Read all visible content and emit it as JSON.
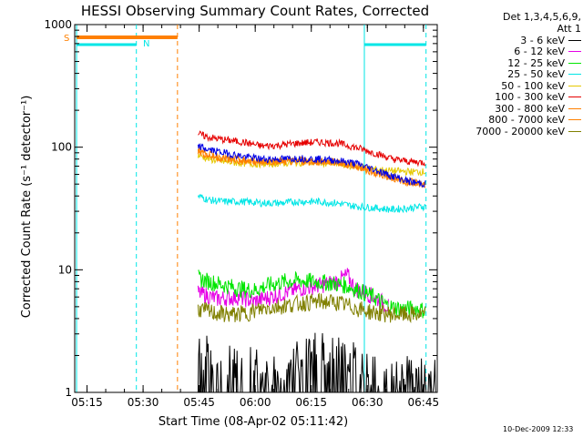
{
  "chart_data": {
    "type": "line",
    "title": "HESSI Observing Summary Count Rates, Corrected",
    "xlabel": "Start Time (08-Apr-02 05:11:42)",
    "ylabel": "Corrected Count Rate (s⁻¹ detector⁻¹)",
    "yscale": "log",
    "ylim": [
      1,
      1000
    ],
    "xlim_minutes": [
      0,
      97
    ],
    "x_ticks": [
      {
        "label": "05:15",
        "minute": 3.3
      },
      {
        "label": "05:30",
        "minute": 18.3
      },
      {
        "label": "05:45",
        "minute": 33.3
      },
      {
        "label": "06:00",
        "minute": 48.3
      },
      {
        "label": "06:15",
        "minute": 63.3
      },
      {
        "label": "06:30",
        "minute": 78.3
      },
      {
        "label": "06:45",
        "minute": 93.3
      }
    ],
    "y_ticks": [
      {
        "label": "1",
        "value": 1
      },
      {
        "label": "10",
        "value": 10
      },
      {
        "label": "100",
        "value": 100
      },
      {
        "label": "1000",
        "value": 1000
      }
    ],
    "grid": false,
    "legend_position": "top-right",
    "legend_header": [
      "Det 1,3,4,5,6,9,",
      "Att 1"
    ],
    "series": [
      {
        "name": "3 - 6 keV",
        "color": "#000000",
        "points": [
          [
            33,
            1.5
          ],
          [
            40,
            1.4
          ],
          [
            55,
            1.0
          ],
          [
            62,
            1.6
          ],
          [
            70,
            1.5
          ],
          [
            77,
            1.3
          ],
          [
            80,
            1.0
          ],
          [
            97,
            1.0
          ]
        ]
      },
      {
        "name": "6 - 12 keV",
        "color": "#e600e6",
        "points": [
          [
            33,
            6.5
          ],
          [
            38,
            5.8
          ],
          [
            44,
            6.0
          ],
          [
            48,
            5.5
          ],
          [
            54,
            6.2
          ],
          [
            60,
            7.0
          ],
          [
            66,
            7.5
          ],
          [
            70,
            8.0
          ],
          [
            73,
            9.0
          ],
          [
            75,
            7.0
          ],
          [
            78,
            6.5
          ],
          [
            80,
            6.0
          ],
          [
            82,
            5.5
          ],
          [
            84,
            5.0
          ]
        ]
      },
      {
        "name": "12 - 25 keV",
        "color": "#00e600",
        "points": [
          [
            33,
            8.5
          ],
          [
            36,
            8.0
          ],
          [
            40,
            7.5
          ],
          [
            44,
            7.0
          ],
          [
            48,
            6.8
          ],
          [
            52,
            7.5
          ],
          [
            56,
            8.0
          ],
          [
            60,
            8.2
          ],
          [
            64,
            8.0
          ],
          [
            68,
            7.8
          ],
          [
            72,
            7.5
          ],
          [
            76,
            6.8
          ],
          [
            80,
            6.0
          ],
          [
            84,
            5.0
          ],
          [
            88,
            4.8
          ],
          [
            92,
            4.8
          ],
          [
            94,
            4.6
          ]
        ]
      },
      {
        "name": "25 - 50 keV",
        "color": "#00e6e6",
        "points": [
          [
            33,
            40
          ],
          [
            36,
            37
          ],
          [
            40,
            36
          ],
          [
            45,
            36
          ],
          [
            50,
            35
          ],
          [
            55,
            35
          ],
          [
            60,
            36
          ],
          [
            65,
            36
          ],
          [
            70,
            35
          ],
          [
            75,
            33
          ],
          [
            80,
            32
          ],
          [
            85,
            31
          ],
          [
            90,
            32
          ],
          [
            94,
            33
          ]
        ]
      },
      {
        "name": "50 - 100 keV",
        "color": "#e6c800",
        "points": [
          [
            33,
            86
          ],
          [
            36,
            80
          ],
          [
            40,
            76
          ],
          [
            45,
            74
          ],
          [
            50,
            73
          ],
          [
            55,
            74
          ],
          [
            60,
            75
          ],
          [
            65,
            75
          ],
          [
            70,
            73
          ],
          [
            75,
            70
          ],
          [
            80,
            66
          ],
          [
            85,
            64
          ],
          [
            90,
            63
          ],
          [
            94,
            63
          ]
        ]
      },
      {
        "name": "100 - 300 keV",
        "color": "#e60000",
        "points": [
          [
            33,
            128
          ],
          [
            36,
            120
          ],
          [
            40,
            115
          ],
          [
            45,
            110
          ],
          [
            50,
            102
          ],
          [
            55,
            104
          ],
          [
            60,
            108
          ],
          [
            65,
            110
          ],
          [
            70,
            108
          ],
          [
            75,
            100
          ],
          [
            80,
            90
          ],
          [
            85,
            80
          ],
          [
            90,
            76
          ],
          [
            94,
            75
          ]
        ]
      },
      {
        "name": "300 - 800 keV",
        "color": "#ff8000",
        "points": [
          [
            33,
            92
          ],
          [
            36,
            85
          ],
          [
            40,
            80
          ],
          [
            45,
            76
          ],
          [
            50,
            75
          ],
          [
            55,
            76
          ],
          [
            60,
            76
          ],
          [
            65,
            76
          ],
          [
            70,
            75
          ],
          [
            75,
            72
          ],
          [
            80,
            63
          ],
          [
            85,
            56
          ],
          [
            90,
            51
          ],
          [
            94,
            49
          ]
        ]
      },
      {
        "name": "800 - 7000 keV",
        "color": "#ff8000",
        "points": [
          [
            33,
            95
          ],
          [
            36,
            88
          ],
          [
            40,
            82
          ],
          [
            45,
            78
          ],
          [
            50,
            77
          ],
          [
            55,
            77
          ],
          [
            60,
            78
          ],
          [
            65,
            77
          ],
          [
            70,
            75
          ],
          [
            75,
            70
          ],
          [
            80,
            62
          ],
          [
            85,
            56
          ],
          [
            90,
            52
          ],
          [
            94,
            50
          ]
        ]
      },
      {
        "name": "7000 - 20000 keV",
        "color": "#808000",
        "points": [
          [
            33,
            4.8
          ],
          [
            35,
            4.6
          ],
          [
            38,
            4.4
          ],
          [
            42,
            4.3
          ],
          [
            46,
            4.4
          ],
          [
            50,
            4.8
          ],
          [
            54,
            5.0
          ],
          [
            58,
            5.2
          ],
          [
            62,
            5.4
          ],
          [
            66,
            5.5
          ],
          [
            70,
            5.4
          ],
          [
            74,
            5.0
          ],
          [
            78,
            4.6
          ],
          [
            82,
            4.4
          ],
          [
            86,
            4.3
          ],
          [
            90,
            4.3
          ],
          [
            94,
            4.3
          ]
        ]
      },
      {
        "name": "",
        "color": "#0000e6",
        "points": [
          [
            33,
            102
          ],
          [
            36,
            95
          ],
          [
            40,
            90
          ],
          [
            45,
            84
          ],
          [
            50,
            80
          ],
          [
            55,
            80
          ],
          [
            60,
            81
          ],
          [
            65,
            80
          ],
          [
            70,
            78
          ],
          [
            75,
            74
          ],
          [
            80,
            66
          ],
          [
            85,
            58
          ],
          [
            90,
            52
          ],
          [
            94,
            50
          ]
        ]
      }
    ],
    "annotations": [
      {
        "text": "S",
        "color": "#ff8000"
      },
      {
        "text": "N",
        "color": "#00e6e6"
      }
    ],
    "timestamp": "10-Dec-2009 12:33"
  }
}
